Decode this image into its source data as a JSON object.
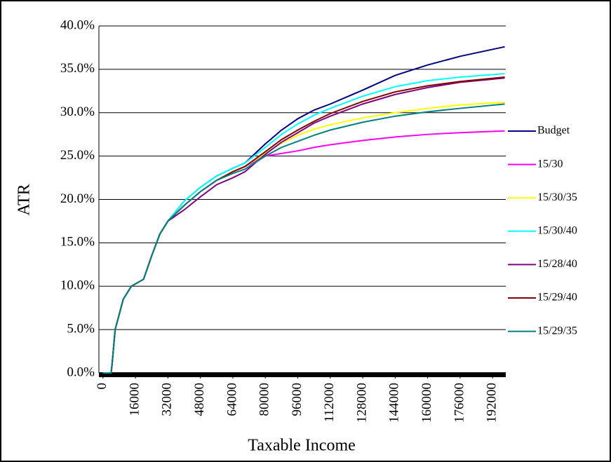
{
  "chart_data": {
    "type": "line",
    "x_label": "Taxable Income",
    "y_label": "ATR",
    "x": [
      0,
      4000,
      4500,
      6000,
      10000,
      14000,
      20000,
      24000,
      28000,
      32000,
      40000,
      48000,
      56000,
      64000,
      70000,
      80000,
      88000,
      96000,
      104000,
      112000,
      128000,
      144000,
      160000,
      176000,
      198000
    ],
    "series": [
      {
        "name": "Budget",
        "color": "#000080",
        "values": [
          0,
          0,
          1,
          5,
          8.5,
          10,
          10.8,
          13.5,
          16,
          17.5,
          19.8,
          21.4,
          22.7,
          23.6,
          24.2,
          26.4,
          28,
          29.3,
          30.3,
          31,
          32.6,
          34.3,
          35.5,
          36.5,
          37.6
        ]
      },
      {
        "name": "15/30",
        "color": "#ff00ff",
        "values": [
          0,
          0,
          1,
          5,
          8.5,
          10,
          10.8,
          13.5,
          16,
          17.5,
          19.3,
          20.9,
          22.2,
          23.2,
          23.8,
          25,
          25.3,
          25.6,
          26,
          26.3,
          26.8,
          27.2,
          27.5,
          27.7,
          27.9
        ]
      },
      {
        "name": "15/30/35",
        "color": "#ffff00",
        "values": [
          0,
          0,
          1,
          5,
          8.5,
          10,
          10.8,
          13.5,
          16,
          17.5,
          19.3,
          20.9,
          22.2,
          23.2,
          23.8,
          25.3,
          26.5,
          27.4,
          28.1,
          28.6,
          29.4,
          30,
          30.5,
          30.9,
          31.2
        ]
      },
      {
        "name": "15/30/40",
        "color": "#00ffff",
        "values": [
          0,
          0,
          1,
          5,
          8.5,
          10,
          10.8,
          13.5,
          16,
          17.5,
          19.8,
          21.4,
          22.7,
          23.6,
          24.2,
          26,
          27.5,
          28.7,
          29.7,
          30.5,
          31.9,
          33,
          33.7,
          34.1,
          34.5
        ]
      },
      {
        "name": "15/28/40",
        "color": "#800080",
        "values": [
          0,
          0,
          1,
          5,
          8.5,
          10,
          10.8,
          13.5,
          16,
          17.5,
          18.8,
          20.3,
          21.7,
          22.5,
          23.2,
          25.2,
          26.6,
          27.7,
          28.8,
          29.6,
          31,
          32.1,
          32.9,
          33.5,
          34
        ]
      },
      {
        "name": "15/29/40",
        "color": "#800000",
        "values": [
          0,
          0,
          1,
          5,
          8.5,
          10,
          10.8,
          13.5,
          16,
          17.5,
          19.3,
          20.9,
          22.2,
          23.2,
          23.8,
          25.5,
          26.9,
          28,
          29,
          29.9,
          31.3,
          32.4,
          33.1,
          33.6,
          34.1
        ]
      },
      {
        "name": "15/29/35",
        "color": "#008080",
        "values": [
          0,
          0,
          1,
          5,
          8.5,
          10,
          10.8,
          13.5,
          16,
          17.5,
          19.3,
          20.9,
          22.2,
          23,
          23.5,
          25,
          26,
          26.7,
          27.4,
          28,
          28.9,
          29.6,
          30.1,
          30.5,
          31
        ]
      }
    ],
    "xlim": [
      -2000,
      198500
    ],
    "xticks": [
      0,
      16000,
      32000,
      48000,
      64000,
      80000,
      96000,
      112000,
      128000,
      144000,
      160000,
      176000,
      192000
    ],
    "ylim": [
      0,
      40
    ],
    "yticks": [
      {
        "value": 0,
        "label": "0.0%"
      },
      {
        "value": 5,
        "label": "5.0%"
      },
      {
        "value": 10,
        "label": "10.0%"
      },
      {
        "value": 15,
        "label": "15.0%"
      },
      {
        "value": 20,
        "label": "20.0%"
      },
      {
        "value": 25,
        "label": "25.0%"
      },
      {
        "value": 30,
        "label": "30.0%"
      },
      {
        "value": 35,
        "label": "35.0%"
      },
      {
        "value": 40,
        "label": "40.0%"
      }
    ],
    "grid": true,
    "legend": "right"
  }
}
